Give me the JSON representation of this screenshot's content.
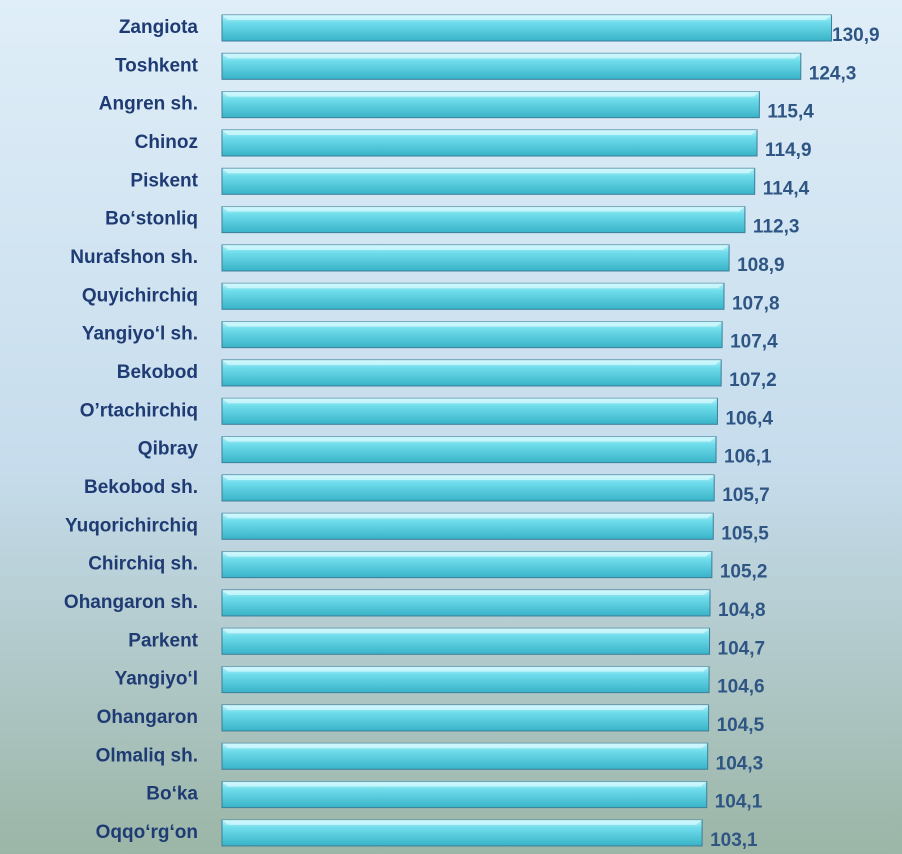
{
  "chart_data": {
    "type": "barh",
    "categories": [
      "Zangiota",
      "Toshkent",
      "Angren sh.",
      "Chinoz",
      "Piskent",
      "Bo‘stonliq",
      "Nurafshon sh.",
      "Quyichirchiq",
      "Yangiyo‘l sh.",
      "Bekobod",
      "O’rtachirchiq",
      "Qibray",
      "Bekobod sh.",
      "Yuqorichirchiq",
      "Chirchiq sh.",
      "Ohangaron sh.",
      "Parkent",
      "Yangiyo‘l",
      "Ohangaron ",
      "Olmaliq sh.",
      "Bo‘ka",
      "Oqqo‘rg‘on"
    ],
    "values": [
      130.9,
      124.3,
      115.4,
      114.9,
      114.4,
      112.3,
      108.9,
      107.8,
      107.4,
      107.2,
      106.4,
      106.1,
      105.7,
      105.5,
      105.2,
      104.8,
      104.7,
      104.6,
      104.5,
      104.3,
      104.1,
      103.1
    ],
    "value_labels": [
      "130,9",
      "124,3",
      "115,4",
      "114,9",
      "114,4",
      "112,3",
      "108,9",
      "107,8",
      "107,4",
      "107,2",
      "106,4",
      "106,1",
      "105,7",
      "105,5",
      "105,2",
      "104,8",
      "104,7",
      "104,6",
      "104,5",
      "104,3",
      "104,1",
      "103,1"
    ],
    "color": "#5fd3e3",
    "xlim": [
      0,
      131
    ]
  }
}
